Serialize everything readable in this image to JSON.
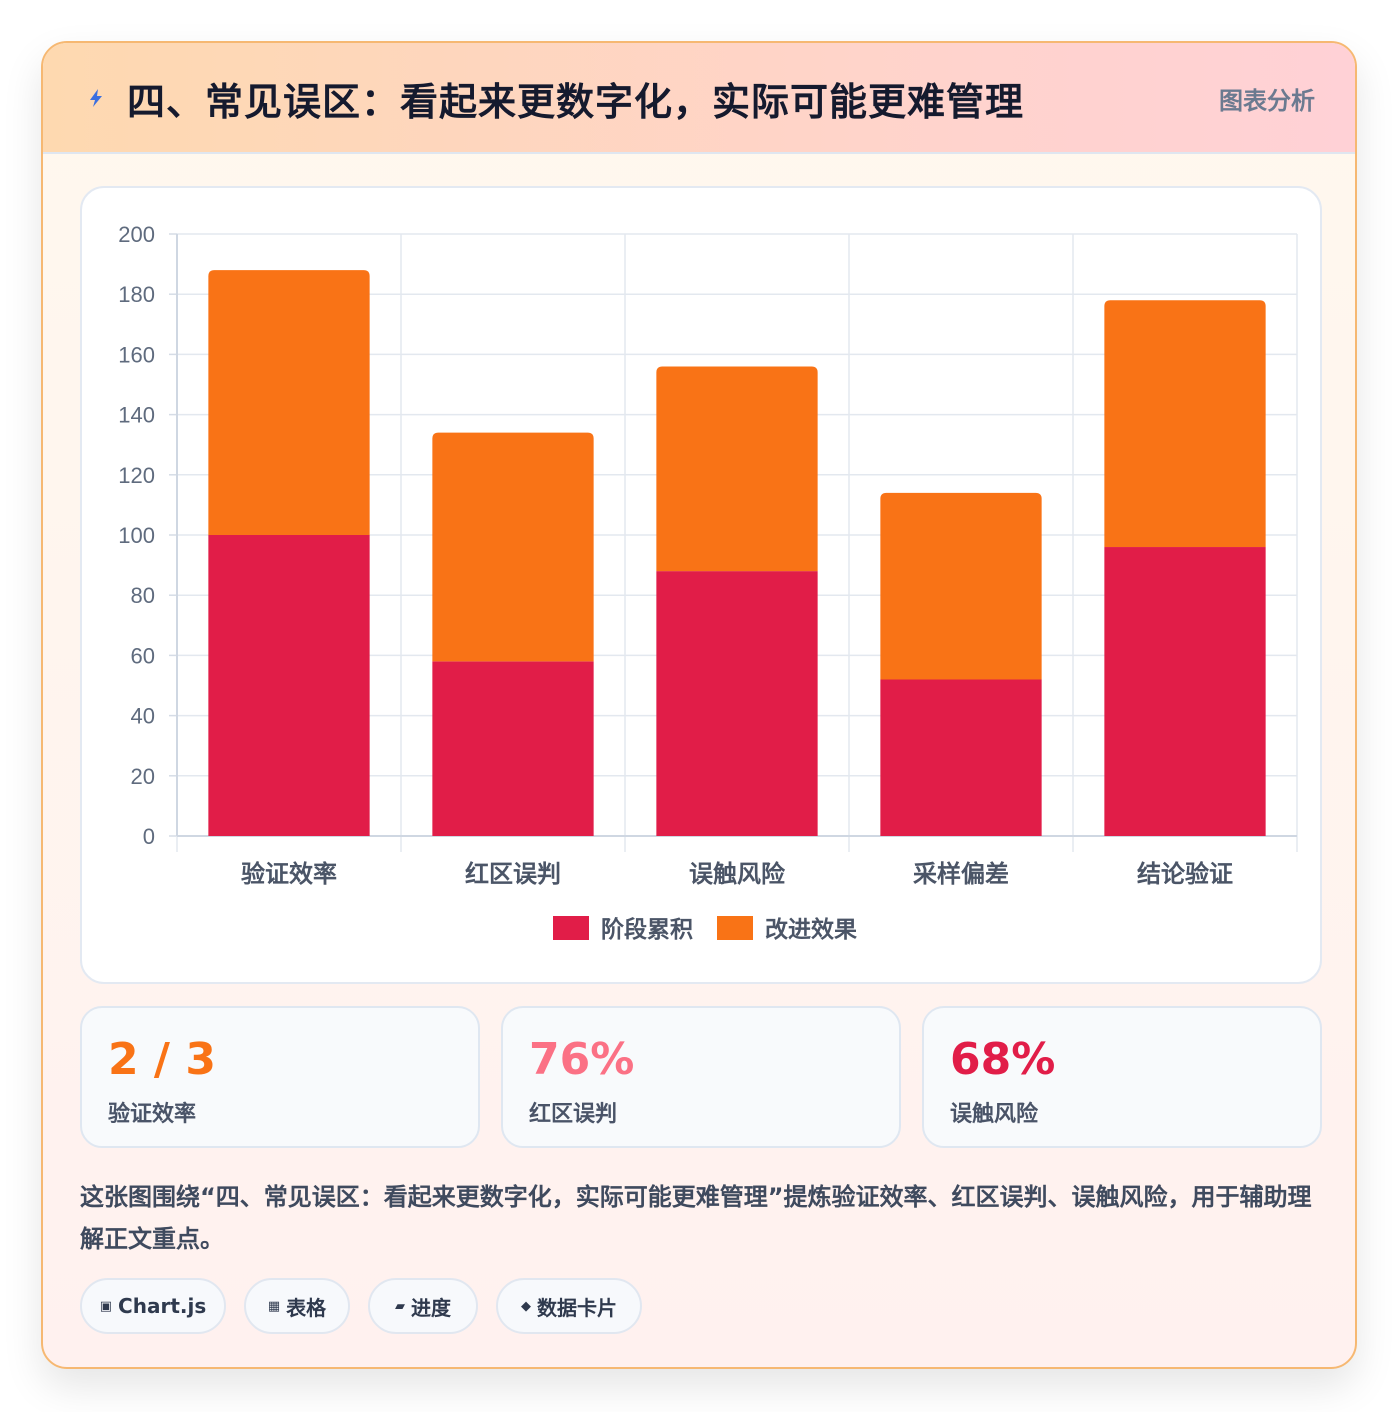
{
  "header": {
    "icon": "lightning-icon",
    "title": "四、常见误区：看起来更数字化，实际可能更难管理",
    "tag": "图表分析"
  },
  "chart_data": {
    "type": "bar",
    "stacked": true,
    "categories": [
      "验证效率",
      "红区误判",
      "误触风险",
      "采样偏差",
      "结论验证"
    ],
    "series": [
      {
        "name": "阶段累积",
        "values": [
          100,
          58,
          88,
          52,
          96
        ],
        "color": "#e11d48"
      },
      {
        "name": "改进效果",
        "values": [
          88,
          76,
          68,
          62,
          82
        ],
        "color": "#f97316"
      }
    ],
    "ylim": [
      0,
      200
    ],
    "yticks": [
      0,
      20,
      40,
      60,
      80,
      100,
      120,
      140,
      160,
      180,
      200
    ],
    "grid": true,
    "legend": "bottom",
    "xlabel": "",
    "ylabel": ""
  },
  "stats": [
    {
      "value": "2 / 3",
      "label": "验证效率",
      "color": "#f97316"
    },
    {
      "value": "76%",
      "label": "红区误判",
      "color": "#fb7185"
    },
    {
      "value": "68%",
      "label": "误触风险",
      "color": "#e11d48"
    }
  ],
  "summary": "这张图围绕“四、常见误区：看起来更数字化，实际可能更难管理”提炼验证效率、红区误判、误触风险，用于辅助理解正文重点。",
  "chips": [
    {
      "icon": "▣",
      "label": "Chart.js"
    },
    {
      "icon": "▦",
      "label": "表格"
    },
    {
      "icon": "▰",
      "label": "进度"
    },
    {
      "icon": "◆",
      "label": "数据卡片"
    }
  ]
}
